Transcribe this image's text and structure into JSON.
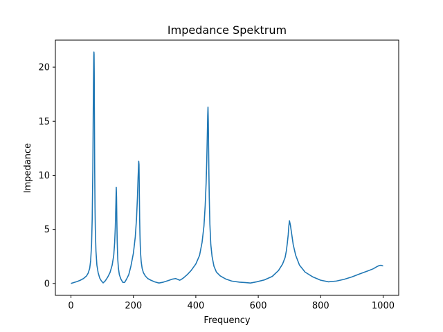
{
  "chart_data": {
    "type": "line",
    "title": "Impedance Spektrum",
    "xlabel": "Frequency",
    "ylabel": "Impedance",
    "xlim": [
      -50,
      1050
    ],
    "ylim": [
      -1.1,
      22.5
    ],
    "xticks": [
      0,
      200,
      400,
      600,
      800,
      1000
    ],
    "yticks": [
      0,
      5,
      10,
      15,
      20
    ],
    "grid": false,
    "legend": "none",
    "series": [
      {
        "color": "#1f77b4",
        "x": [
          0,
          10,
          20,
          30,
          40,
          50,
          55,
          60,
          63,
          66,
          68,
          70,
          71,
          72,
          73,
          73.5,
          74,
          74.5,
          75,
          76,
          77,
          78,
          80,
          83,
          87,
          92,
          97,
          103,
          110,
          118,
          125,
          132,
          137,
          140,
          142,
          144,
          145,
          146,
          147,
          148,
          149,
          150,
          152,
          155,
          160,
          166,
          172,
          178,
          185,
          192,
          200,
          206,
          210,
          213,
          215,
          217,
          218,
          219,
          220,
          221,
          222,
          223,
          225,
          228,
          232,
          238,
          246,
          256,
          268,
          282,
          296,
          305,
          315,
          325,
          335,
          342,
          348,
          352,
          356,
          362,
          372,
          385,
          400,
          412,
          420,
          426,
          430,
          433,
          435,
          437,
          438,
          439,
          440,
          441,
          442,
          443,
          445,
          448,
          452,
          458,
          466,
          478,
          495,
          515,
          540,
          560,
          575,
          595,
          620,
          645,
          665,
          678,
          686,
          690,
          693,
          696,
          698,
          700,
          703,
          707,
          712,
          720,
          732,
          750,
          775,
          800,
          825,
          850,
          875,
          900,
          925,
          950,
          968,
          980,
          987,
          993,
          1000
        ],
        "y": [
          0,
          0.09,
          0.18,
          0.3,
          0.45,
          0.7,
          0.95,
          1.4,
          2.1,
          3.6,
          6.0,
          10.5,
          14.5,
          18.5,
          21.0,
          21.4,
          21.2,
          19.5,
          16.0,
          10.5,
          7.0,
          5.0,
          3.0,
          1.7,
          1.0,
          0.5,
          0.25,
          0.05,
          0.25,
          0.6,
          1.0,
          1.7,
          2.6,
          3.8,
          5.2,
          7.5,
          8.9,
          8.0,
          5.8,
          4.0,
          3.0,
          2.2,
          1.4,
          0.8,
          0.4,
          0.1,
          0.1,
          0.4,
          0.8,
          1.6,
          2.8,
          4.3,
          6.0,
          8.0,
          9.8,
          11.3,
          11.0,
          8.5,
          6.0,
          4.5,
          3.5,
          2.8,
          2.0,
          1.4,
          1.0,
          0.7,
          0.45,
          0.3,
          0.15,
          0.04,
          0.12,
          0.2,
          0.3,
          0.4,
          0.45,
          0.38,
          0.3,
          0.35,
          0.42,
          0.55,
          0.8,
          1.2,
          1.8,
          2.6,
          3.8,
          5.3,
          7.2,
          9.3,
          11.3,
          14.0,
          15.5,
          16.3,
          15.0,
          12.5,
          10.0,
          8.0,
          5.5,
          3.6,
          2.5,
          1.6,
          1.05,
          0.7,
          0.42,
          0.22,
          0.12,
          0.08,
          0.04,
          0.15,
          0.33,
          0.65,
          1.2,
          1.8,
          2.4,
          3.0,
          3.7,
          4.5,
          5.3,
          5.8,
          5.4,
          4.6,
          3.6,
          2.6,
          1.7,
          1.05,
          0.6,
          0.3,
          0.15,
          0.22,
          0.38,
          0.6,
          0.88,
          1.15,
          1.35,
          1.55,
          1.65,
          1.68,
          1.62
        ]
      }
    ]
  }
}
